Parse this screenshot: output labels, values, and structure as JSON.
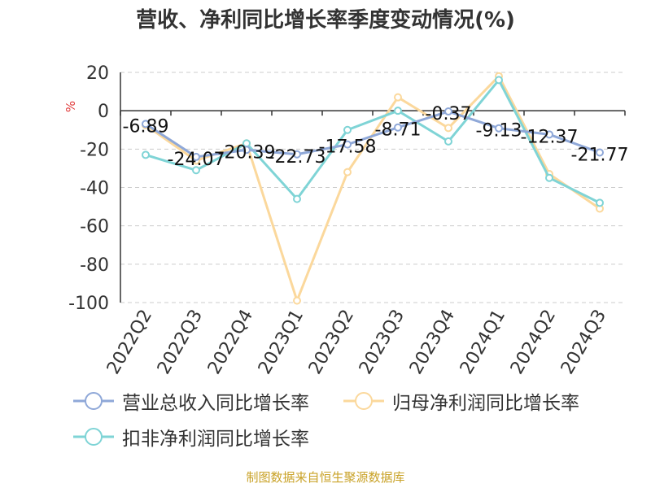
{
  "title": "营收、净利同比增长率季度变动情况(%)",
  "source": "制图数据来自恒生聚源数据库",
  "chart_data": {
    "type": "line",
    "title": "营收、净利同比增长率季度变动情况(%)",
    "ylabel": "%",
    "xlabel": "",
    "ylim": [
      -100,
      20
    ],
    "yticks": [
      20,
      0,
      -20,
      -40,
      -60,
      -80,
      -100
    ],
    "grid": true,
    "legend_position": "bottom",
    "categories": [
      "2022Q2",
      "2022Q3",
      "2022Q4",
      "2023Q1",
      "2023Q2",
      "2023Q3",
      "2023Q4",
      "2024Q1",
      "2024Q2",
      "2024Q3"
    ],
    "series": [
      {
        "name": "营业总收入同比增长率",
        "color": "#8fa8d8",
        "values": [
          -6.89,
          -24.07,
          -20.39,
          -22.73,
          -17.58,
          -8.71,
          -0.37,
          -9.13,
          -12.37,
          -21.77
        ],
        "labels": [
          "-6.89",
          "-24.07",
          "-20.39",
          "-22.73",
          "-17.58",
          "-8.71",
          "-0.37",
          "-9.13",
          "-12.37",
          "-21.77"
        ]
      },
      {
        "name": "归母净利润同比增长率",
        "color": "#fbd89c",
        "values": [
          -7.5,
          -26,
          -17,
          -99,
          -32,
          7,
          -9,
          18,
          -33,
          -51
        ]
      },
      {
        "name": "扣非净利润同比增长率",
        "color": "#7fd4d6",
        "values": [
          -23,
          -31,
          -17,
          -46,
          -10,
          0,
          -16,
          16,
          -35,
          -48
        ]
      }
    ]
  }
}
